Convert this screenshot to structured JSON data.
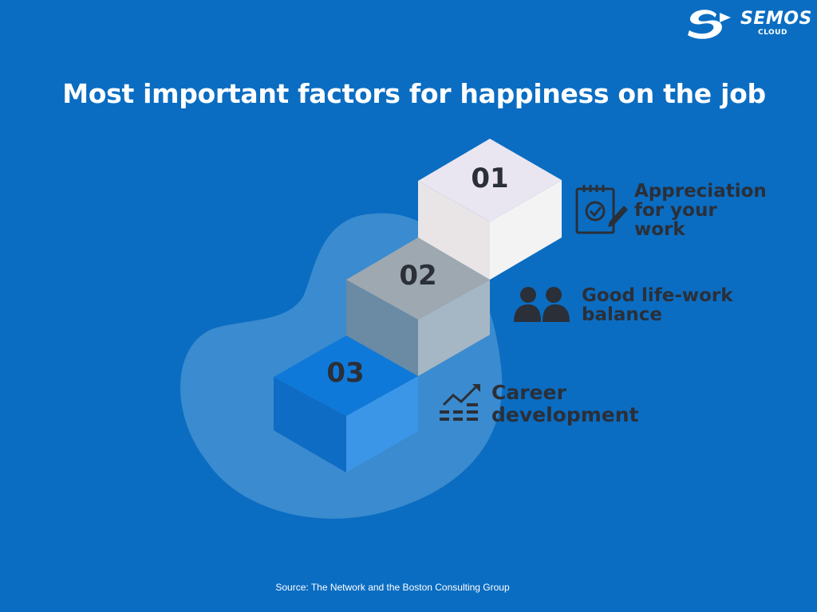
{
  "brand": {
    "name": "SEMOS",
    "sub": "CLOUD",
    "icon": "semos-cloud-logo"
  },
  "title": "Most important factors for happiness on the job",
  "colors": {
    "background": "#0a6dc2",
    "blob": "#3a8bcf",
    "step_1_top": "#eae6f1",
    "step_2_top": "#9ea8b0",
    "step_3_top": "#0f79d9",
    "text_dark": "#2b2f38"
  },
  "steps": [
    {
      "number": "01",
      "label_lines": [
        "Appreciation",
        "for your",
        "work"
      ],
      "icon": "clipboard-check-pencil-icon"
    },
    {
      "number": "02",
      "label_lines": [
        "Good life-work",
        "balance"
      ],
      "icon": "people-group-icon"
    },
    {
      "number": "03",
      "label_lines": [
        "Career",
        "development"
      ],
      "icon": "growth-chart-icon"
    }
  ],
  "source": "Source: The Network and the Boston Consulting Group"
}
